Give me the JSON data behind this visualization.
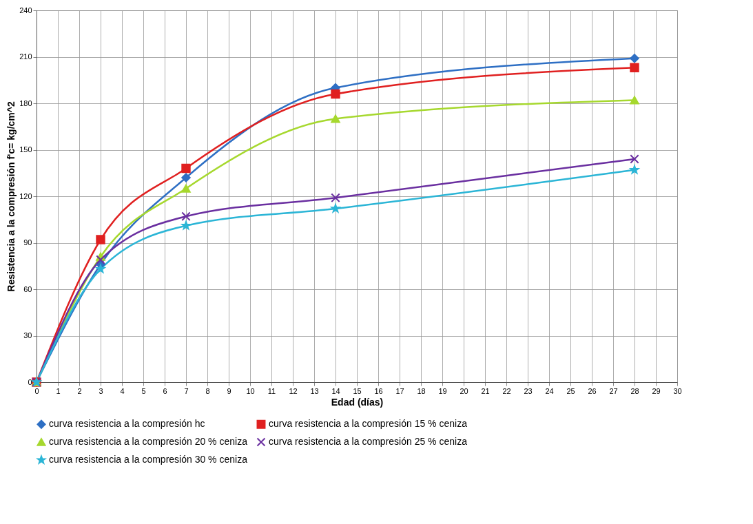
{
  "chart_data": {
    "type": "line",
    "xlabel": "Edad (días)",
    "ylabel": "Resistencia a la compresión   f'c= kg/cm^2",
    "x": [
      0,
      3,
      7,
      14,
      28
    ],
    "series": [
      {
        "name": "curva resistencia a la compresión hc",
        "color": "#2e6fc4",
        "marker": "diamond",
        "values": [
          0,
          76,
          132,
          190,
          209
        ]
      },
      {
        "name": "curva resistencia a la compresión 15 % ceniza",
        "color": "#e02020",
        "marker": "square",
        "values": [
          0,
          92,
          138,
          186,
          203
        ]
      },
      {
        "name": "curva resistencia a la compresión 20 % ceniza",
        "color": "#a6d82e",
        "marker": "triangle",
        "values": [
          0,
          81,
          125,
          170,
          182
        ]
      },
      {
        "name": "curva resistencia a la compresión 25 % ceniza",
        "color": "#6a2fa0",
        "marker": "cross",
        "values": [
          0,
          79,
          107,
          119,
          144
        ]
      },
      {
        "name": "curva resistencia a la compresión 30 % ceniza",
        "color": "#2bb5d6",
        "marker": "star",
        "values": [
          0,
          73,
          101,
          112,
          137
        ]
      }
    ],
    "xlim": [
      0,
      30
    ],
    "xticks": [
      0,
      1,
      2,
      3,
      4,
      5,
      6,
      7,
      8,
      9,
      10,
      11,
      12,
      13,
      14,
      15,
      16,
      17,
      18,
      19,
      20,
      21,
      22,
      23,
      24,
      25,
      26,
      27,
      28,
      29,
      30
    ],
    "ylim": [
      0,
      240
    ],
    "yticks": [
      0,
      30,
      60,
      90,
      120,
      150,
      180,
      210,
      240
    ],
    "grid": true,
    "legend": "bottom",
    "line_style": "solid"
  }
}
